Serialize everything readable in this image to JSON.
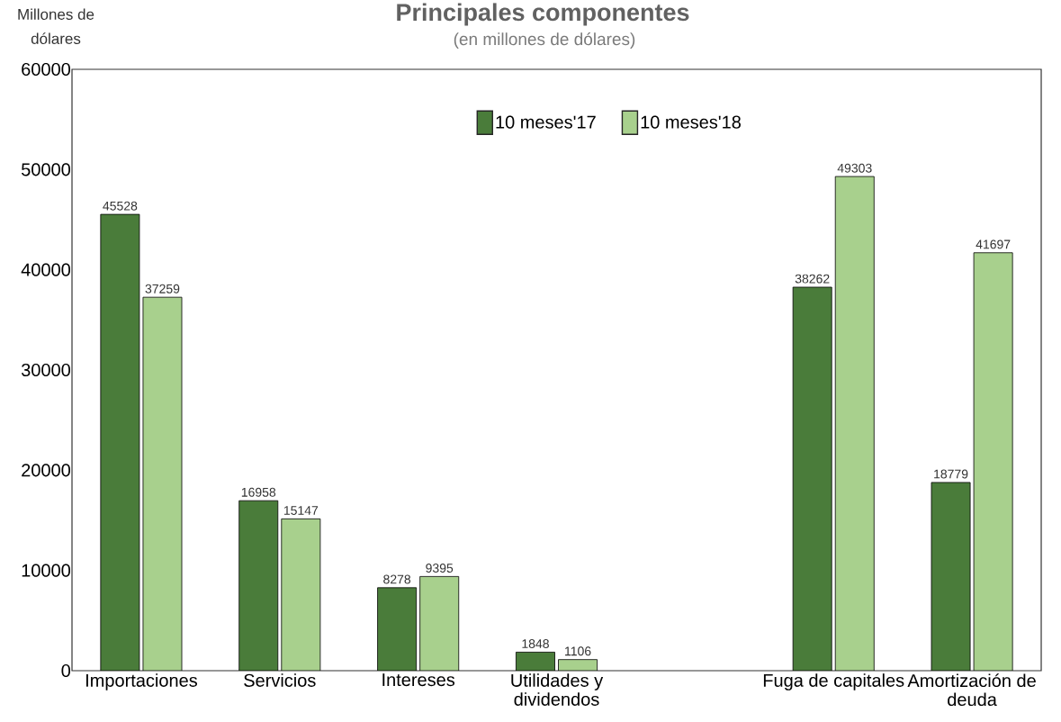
{
  "chart_data": {
    "type": "bar",
    "title": "Principales componentes",
    "subtitle": "(en millones de dólares)",
    "ylabel": "Millones de dólares",
    "categories": [
      "Importaciones",
      "Servicios",
      "Intereses",
      "Utilidades y dividendos",
      null,
      "Fuga de capitales",
      "Amortización de deuda"
    ],
    "series": [
      {
        "name": "10 meses'17",
        "color": "#4a7c3a",
        "values": [
          45528,
          16958,
          8278,
          1848,
          null,
          38262,
          18779
        ]
      },
      {
        "name": "10 meses'18",
        "color": "#a8d08d",
        "values": [
          37259,
          15147,
          9395,
          1106,
          null,
          49303,
          41697
        ]
      }
    ],
    "ylim": [
      0,
      60000
    ],
    "yticks": [
      0,
      10000,
      20000,
      30000,
      40000,
      50000,
      60000
    ],
    "data_labels": true,
    "legend": "top"
  }
}
